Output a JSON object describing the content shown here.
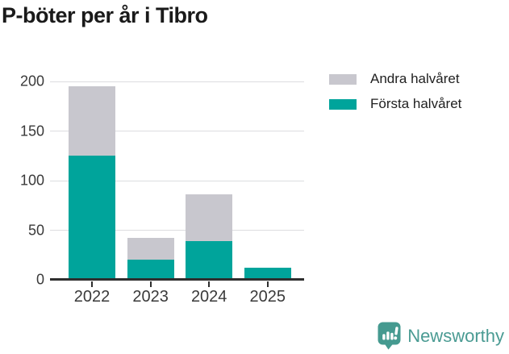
{
  "chart_data": {
    "type": "bar",
    "stacked": true,
    "title": "P-böter per år i Tibro",
    "categories": [
      "2022",
      "2023",
      "2024",
      "2025"
    ],
    "series": [
      {
        "name": "Första halvåret",
        "color": "#00a49b",
        "values": [
          125,
          20,
          39,
          12
        ]
      },
      {
        "name": "Andra halvåret",
        "color": "#c8c7ce",
        "values": [
          70,
          22,
          47,
          0
        ]
      }
    ],
    "totals": [
      195,
      42,
      86,
      12
    ],
    "xlabel": "",
    "ylabel": "",
    "ylim": [
      0,
      200
    ],
    "yticks": [
      0,
      50,
      100,
      150,
      200
    ],
    "grid": true,
    "legend_position": "right-top",
    "legend_order": [
      "Andra halvåret",
      "Första halvåret"
    ]
  },
  "colors": {
    "first_half": "#00a49b",
    "second_half": "#c8c7ce",
    "axis": "#2e2e2e",
    "gridline": "#dcdde0",
    "brand": "#4a9b93"
  },
  "footer": {
    "brand": "Newsworthy",
    "brand_icon": "bar-chart-speech-bubble-icon"
  }
}
